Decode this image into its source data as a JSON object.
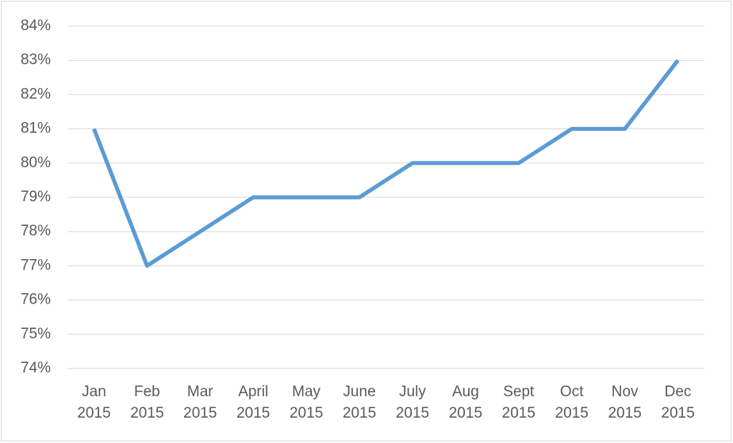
{
  "chart_data": {
    "type": "line",
    "categories": [
      "Jan 2015",
      "Feb 2015",
      "Mar 2015",
      "April 2015",
      "May 2015",
      "June 2015",
      "July 2015",
      "Aug 2015",
      "Sept 2015",
      "Oct 2015",
      "Nov 2015",
      "Dec 2015"
    ],
    "series": [
      {
        "color": "#5b9bd5",
        "values": [
          81,
          77,
          78,
          79,
          79,
          79,
          80,
          80,
          80,
          81,
          81,
          83
        ]
      }
    ],
    "ylim": [
      74,
      84
    ],
    "yticks": [
      {
        "value": 74,
        "label": "74%"
      },
      {
        "value": 75,
        "label": "75%"
      },
      {
        "value": 76,
        "label": "76%"
      },
      {
        "value": 77,
        "label": "77%"
      },
      {
        "value": 78,
        "label": "78%"
      },
      {
        "value": 79,
        "label": "79%"
      },
      {
        "value": 80,
        "label": "80%"
      },
      {
        "value": 81,
        "label": "81%"
      },
      {
        "value": 82,
        "label": "82%"
      },
      {
        "value": 83,
        "label": "83%"
      },
      {
        "value": 84,
        "label": "84%"
      }
    ],
    "grid": true
  }
}
